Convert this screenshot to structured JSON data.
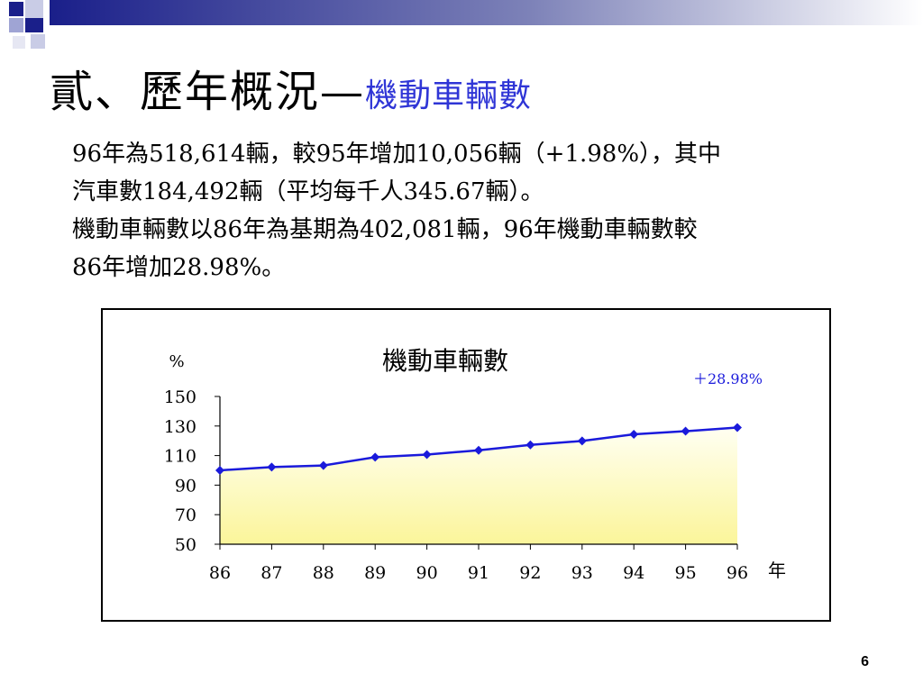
{
  "slide": {
    "title_main": "貳、歷年概況—",
    "title_sub": "機動車輛數",
    "paragraphs": [
      "96年為518,614輛，較95年增加10,056輛（+1.98%），其中",
      "汽車數184,492輛（平均每千人345.67輛）。",
      "機動車輛數以86年為基期為402,081輛，96年機動車輛數較",
      "86年增加28.98%。"
    ],
    "page_number": "6"
  },
  "colors": {
    "title_accent": "#2f35d6",
    "series_line": "#1a1adb",
    "area_top": "#fffff2",
    "area_bottom": "#fbf59a",
    "annotation": "#1a1adb"
  },
  "chart_data": {
    "type": "area",
    "title": "機動車輛數",
    "ylabel": "%",
    "xlabel": "年",
    "annotation": "＋28.98%",
    "categories": [
      "86",
      "87",
      "88",
      "89",
      "90",
      "91",
      "92",
      "93",
      "94",
      "95",
      "96"
    ],
    "series": [
      {
        "values": [
          100,
          102.2,
          103.3,
          108.9,
          110.7,
          113.6,
          117.2,
          119.9,
          124.4,
          126.5,
          128.98
        ]
      }
    ],
    "ylim": [
      50,
      150
    ],
    "yticks": [
      "150",
      "130",
      "110",
      "90",
      "70",
      "50"
    ],
    "grid": false,
    "legend": "none"
  }
}
